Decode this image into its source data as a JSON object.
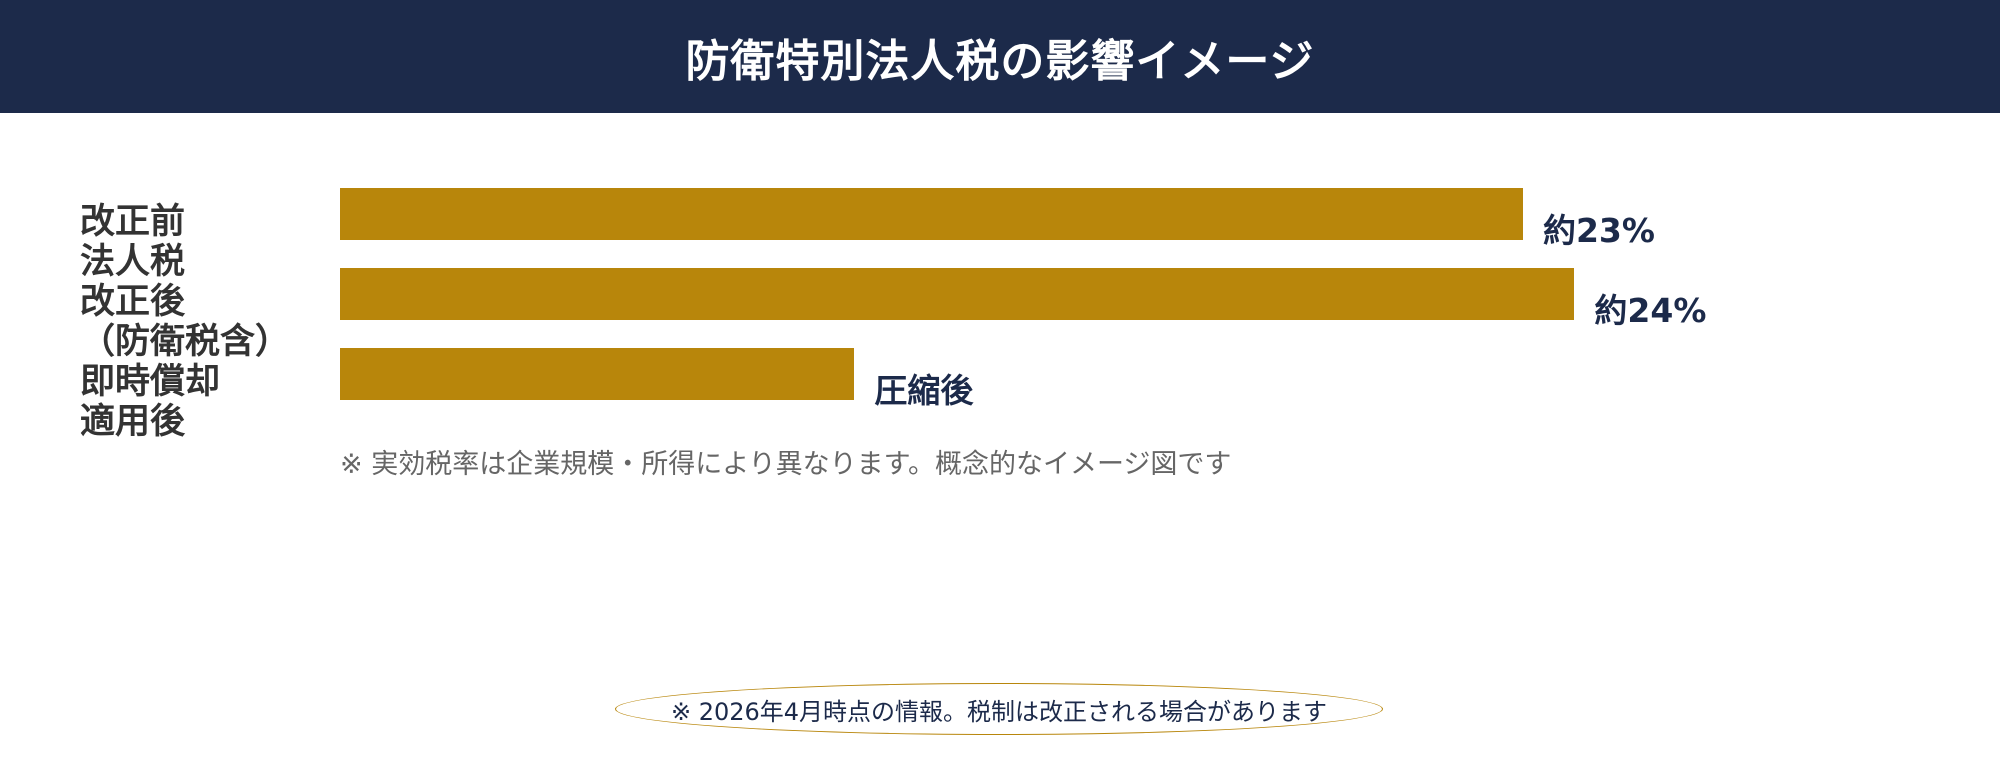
{
  "colors": {
    "header_bg": "#1c2a4a",
    "bar": "#b8860b",
    "value_text": "#1c2a4a",
    "footer_text": "#1c2a4a"
  },
  "header": {
    "title": "防衛特別法人税の影響イメージ"
  },
  "chart_data": {
    "type": "bar",
    "orientation": "horizontal",
    "categories": [
      "改正前\n法人税",
      "改正後\n（防衛税含）",
      "即時償却\n適用後"
    ],
    "values": [
      23,
      24,
      10
    ],
    "value_labels": [
      "約23%",
      "約24%",
      "圧縮後"
    ],
    "xlim": [
      0,
      26.5
    ],
    "grid": false,
    "legend": "none"
  },
  "note": "※ 実効税率は企業規模・所得により異なります。概念的なイメージ図です",
  "footer": {
    "text": "※ 2026年4月時点の情報。税制は改正される場合があります"
  }
}
